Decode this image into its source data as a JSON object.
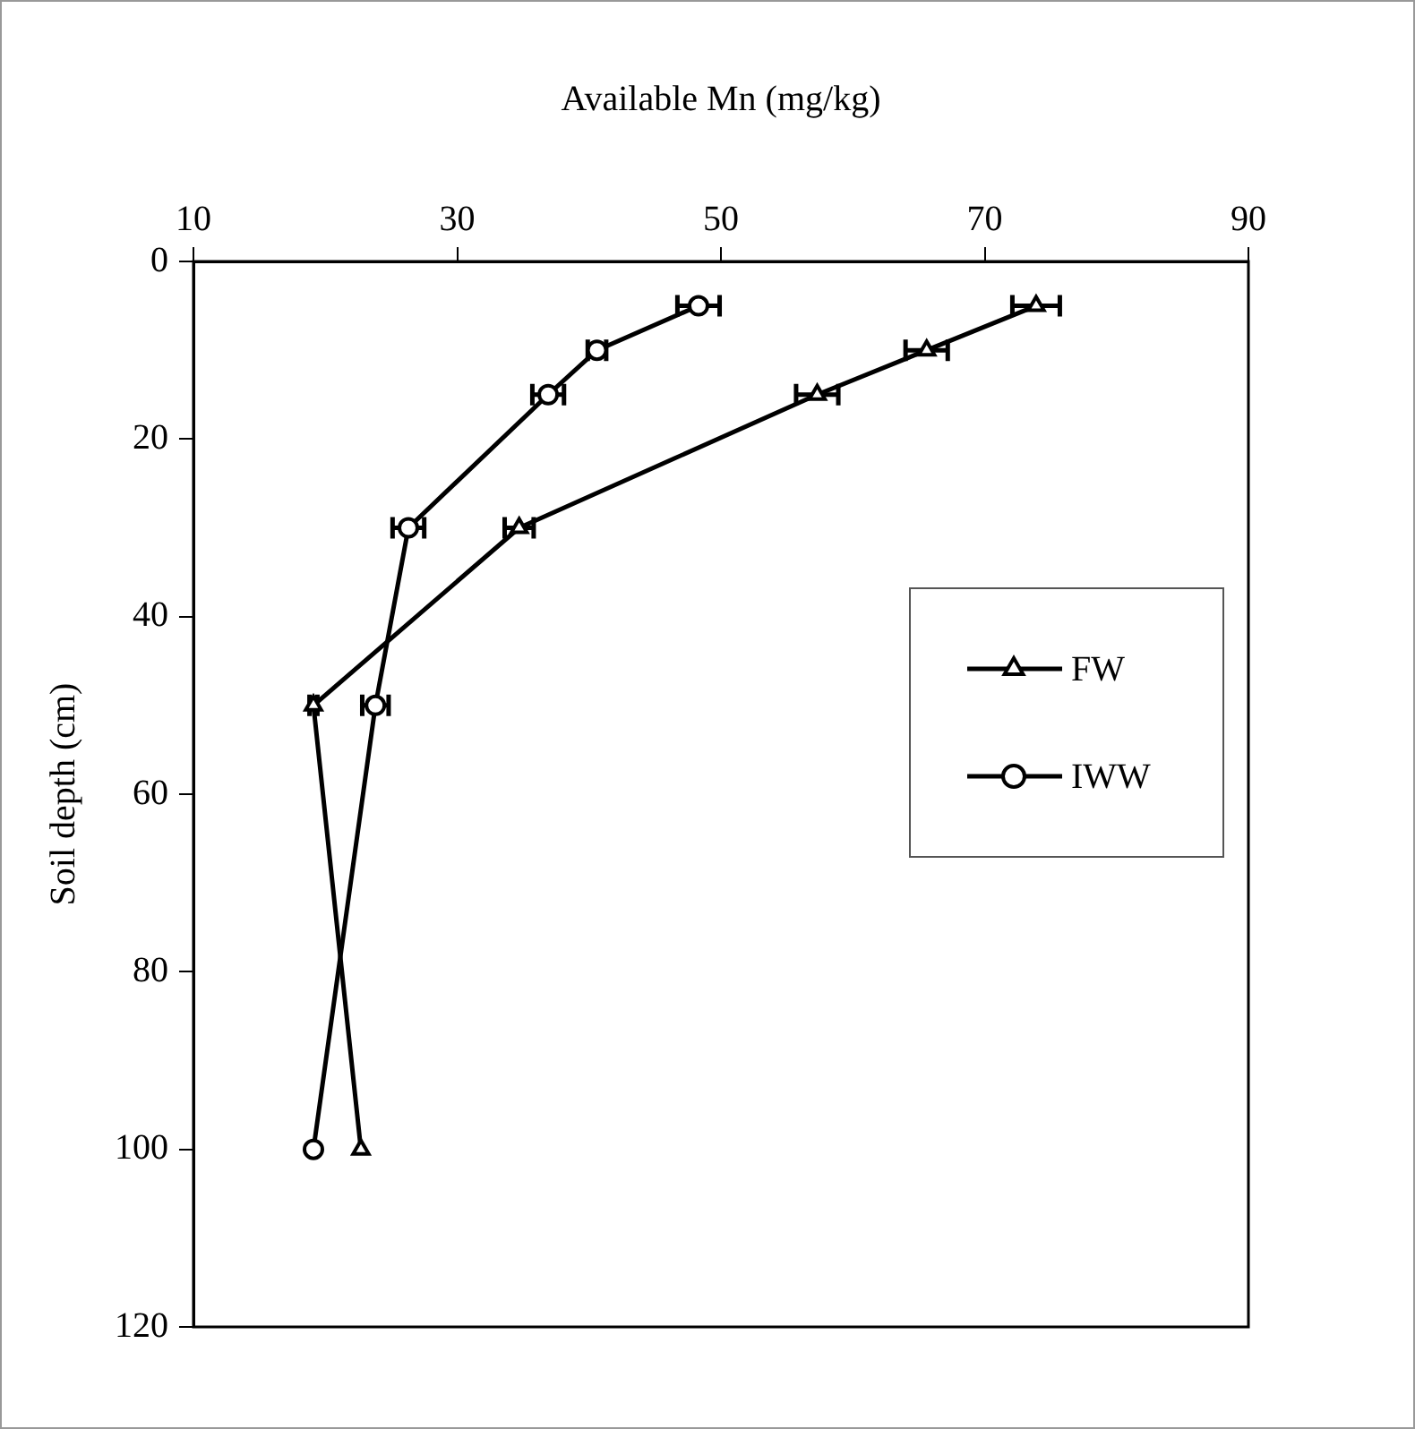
{
  "chart_data": {
    "type": "line",
    "xlabel": "Available Mn (mg/kg)",
    "ylabel": "Soil depth (cm)",
    "xlim": [
      10,
      90
    ],
    "xticks": [
      10,
      30,
      50,
      70,
      90
    ],
    "ylim": [
      120,
      0
    ],
    "yticks": [
      0,
      20,
      40,
      60,
      80,
      100,
      120
    ],
    "grid": false,
    "legend": "right",
    "series": [
      {
        "name": "FW",
        "color": "#000000",
        "marker": "triangle",
        "x": [
          73.9,
          65.6,
          57.3,
          34.7,
          19.1,
          22.7
        ],
        "values": [
          5,
          10,
          15,
          30,
          50,
          100
        ],
        "xerrors": [
          1.8,
          1.6,
          1.6,
          1.1,
          0.3,
          null
        ]
      },
      {
        "name": "IWW",
        "color": "#000000",
        "marker": "circle",
        "x": [
          48.3,
          40.6,
          36.9,
          26.3,
          23.8,
          19.1
        ],
        "values": [
          5,
          10,
          15,
          30,
          50,
          100
        ],
        "xerrors": [
          1.6,
          0.7,
          1.2,
          1.2,
          1.0,
          null
        ]
      }
    ]
  }
}
